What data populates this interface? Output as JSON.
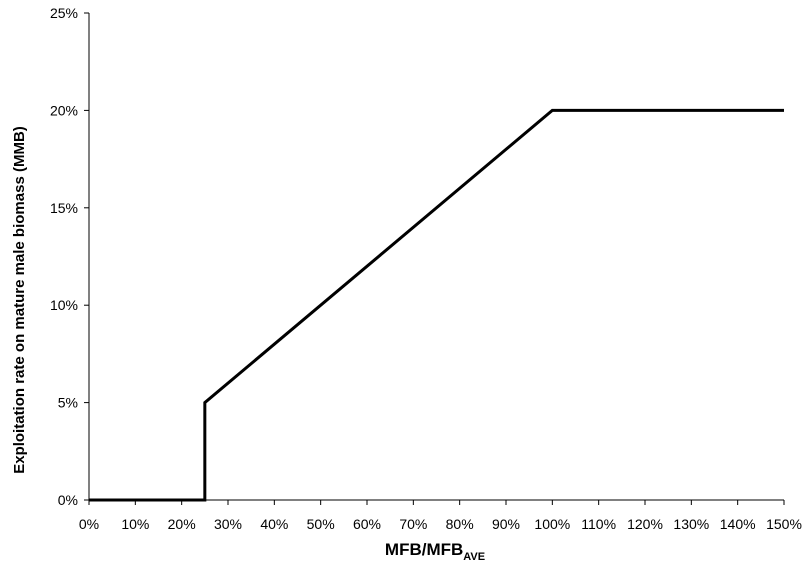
{
  "chart_data": {
    "type": "line",
    "title": "",
    "xlabel": {
      "main": "MFB/MFB",
      "subscript": "AVE"
    },
    "ylabel": "Exploitation rate on mature male biomass (MMB)",
    "xlim": [
      0,
      150
    ],
    "ylim": [
      0,
      25
    ],
    "x_ticks": [
      0,
      10,
      20,
      30,
      40,
      50,
      60,
      70,
      80,
      90,
      100,
      110,
      120,
      130,
      140,
      150
    ],
    "x_tick_labels": [
      "0%",
      "10%",
      "20%",
      "30%",
      "40%",
      "50%",
      "60%",
      "70%",
      "80%",
      "90%",
      "100%",
      "110%",
      "120%",
      "130%",
      "140%",
      "150%"
    ],
    "y_ticks": [
      0,
      5,
      10,
      15,
      20,
      25
    ],
    "y_tick_labels": [
      "0%",
      "5%",
      "10%",
      "15%",
      "20%",
      "25%"
    ],
    "grid": false,
    "legend": "none",
    "line_color": "#000000",
    "series": [
      {
        "points": [
          [
            0,
            0
          ],
          [
            25,
            0
          ],
          [
            25,
            5
          ],
          [
            100,
            20
          ],
          [
            150,
            20
          ]
        ]
      }
    ]
  }
}
